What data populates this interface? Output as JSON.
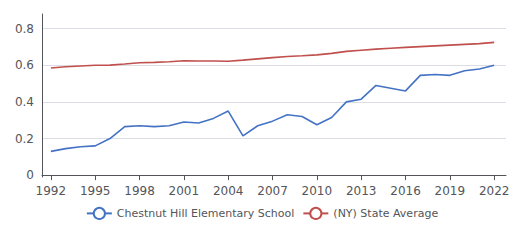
{
  "chart_data": {
    "type": "line",
    "x": [
      1992,
      1993,
      1994,
      1995,
      1996,
      1997,
      1998,
      1999,
      2000,
      2001,
      2002,
      2003,
      2004,
      2005,
      2006,
      2007,
      2008,
      2009,
      2010,
      2011,
      2012,
      2013,
      2014,
      2015,
      2016,
      2017,
      2018,
      2019,
      2020,
      2021,
      2022
    ],
    "series": [
      {
        "name": "Chestnut Hill Elementary School",
        "color": "#4472C4",
        "values": [
          0.13,
          0.145,
          0.155,
          0.16,
          0.2,
          0.265,
          0.27,
          0.265,
          0.27,
          0.29,
          0.285,
          0.31,
          0.35,
          0.215,
          0.27,
          0.295,
          0.33,
          0.32,
          0.275,
          0.315,
          0.4,
          0.415,
          0.49,
          0.475,
          0.46,
          0.545,
          0.55,
          0.545,
          0.57,
          0.58,
          0.6
        ]
      },
      {
        "name": "(NY) State Average",
        "color": "#C0504D",
        "values": [
          0.585,
          0.592,
          0.596,
          0.6,
          0.601,
          0.607,
          0.614,
          0.616,
          0.619,
          0.625,
          0.623,
          0.623,
          0.622,
          0.628,
          0.635,
          0.642,
          0.648,
          0.652,
          0.657,
          0.665,
          0.676,
          0.682,
          0.688,
          0.693,
          0.698,
          0.702,
          0.706,
          0.71,
          0.714,
          0.718,
          0.725
        ]
      }
    ],
    "xlim": [
      1991.4,
      2022.8
    ],
    "xticks": [
      1992,
      1995,
      1998,
      2001,
      2004,
      2007,
      2010,
      2013,
      2016,
      2019,
      2022
    ],
    "ylim": [
      -0.01,
      0.88
    ],
    "yticks": [
      0,
      0.2,
      0.4,
      0.6,
      0.8
    ],
    "grid": true,
    "legend": "bottom"
  }
}
